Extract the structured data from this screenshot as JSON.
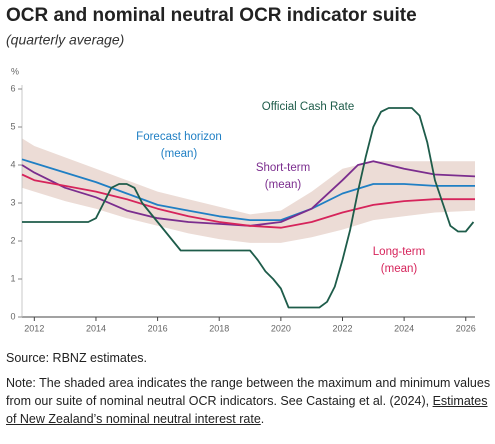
{
  "chart_data": {
    "type": "line",
    "title": "OCR and nominal neutral OCR indicator suite",
    "subtitle": "(quarterly average)",
    "y_unit": "%",
    "xlim": [
      2011.6,
      2026.3
    ],
    "xticks": [
      2012,
      2014,
      2016,
      2018,
      2020,
      2022,
      2024,
      2026
    ],
    "ylim": [
      0,
      6
    ],
    "yticks": [
      0,
      1,
      2,
      3,
      4,
      5,
      6
    ],
    "grid": false,
    "range": {
      "color": "#ecdcd6",
      "x": [
        2011.6,
        2012,
        2013,
        2014,
        2015,
        2016,
        2017,
        2018,
        2019,
        2020,
        2021,
        2022,
        2023,
        2024,
        2025,
        2026.3
      ],
      "upper": [
        4.7,
        4.5,
        4.2,
        3.9,
        3.6,
        3.3,
        3.1,
        2.9,
        2.7,
        2.8,
        3.3,
        3.9,
        4.1,
        4.1,
        4.1,
        4.1
      ],
      "lower": [
        3.4,
        3.3,
        3.05,
        2.85,
        2.6,
        2.4,
        2.2,
        2.05,
        1.95,
        1.95,
        2.1,
        2.3,
        2.55,
        2.65,
        2.75,
        2.8
      ]
    },
    "series": [
      {
        "label": [
          "Forecast horizon",
          "(mean)"
        ],
        "color": "#1f7fc4",
        "x": [
          2011.6,
          2012,
          2013,
          2014,
          2015,
          2016,
          2017,
          2018,
          2019,
          2020,
          2021,
          2022,
          2023,
          2024,
          2025,
          2026.3
        ],
        "values": [
          4.15,
          4.05,
          3.8,
          3.55,
          3.25,
          2.95,
          2.8,
          2.65,
          2.55,
          2.55,
          2.85,
          3.25,
          3.5,
          3.5,
          3.45,
          3.45
        ]
      },
      {
        "label": [
          "Short-term",
          "(mean)"
        ],
        "color": "#7b2d8e",
        "x": [
          2011.6,
          2012,
          2013,
          2014,
          2015,
          2016,
          2017,
          2018,
          2019,
          2020,
          2021,
          2022,
          2022.5,
          2023,
          2024,
          2025,
          2026.3
        ],
        "values": [
          4.0,
          3.8,
          3.4,
          3.15,
          2.8,
          2.6,
          2.5,
          2.45,
          2.4,
          2.5,
          2.85,
          3.6,
          4.0,
          4.1,
          3.9,
          3.75,
          3.7
        ]
      },
      {
        "label": [
          "Long-term",
          "(mean)"
        ],
        "color": "#d6245b",
        "x": [
          2011.6,
          2012,
          2013,
          2014,
          2015,
          2016,
          2017,
          2018,
          2019,
          2020,
          2021,
          2022,
          2023,
          2024,
          2025,
          2026.3
        ],
        "values": [
          3.75,
          3.6,
          3.45,
          3.3,
          3.1,
          2.85,
          2.65,
          2.5,
          2.4,
          2.35,
          2.5,
          2.75,
          2.95,
          3.05,
          3.1,
          3.1
        ]
      },
      {
        "label": [
          "Official Cash Rate"
        ],
        "color": "#1e5c4a",
        "x": [
          2011.6,
          2013.75,
          2014.0,
          2014.25,
          2014.5,
          2014.75,
          2015.0,
          2015.25,
          2015.5,
          2016.0,
          2016.5,
          2016.75,
          2019.0,
          2019.25,
          2019.5,
          2019.75,
          2020.0,
          2020.25,
          2021.25,
          2021.5,
          2021.75,
          2022.0,
          2022.25,
          2022.5,
          2022.75,
          2023.0,
          2023.25,
          2023.5,
          2024.25,
          2024.5,
          2024.75,
          2025.0,
          2025.25,
          2025.5,
          2025.75,
          2026.0,
          2026.25
        ],
        "values": [
          2.5,
          2.5,
          2.6,
          3.0,
          3.4,
          3.5,
          3.5,
          3.4,
          3.0,
          2.5,
          2.0,
          1.75,
          1.75,
          1.5,
          1.2,
          1.0,
          0.75,
          0.25,
          0.25,
          0.4,
          0.8,
          1.5,
          2.3,
          3.3,
          4.2,
          5.0,
          5.4,
          5.5,
          5.5,
          5.3,
          4.6,
          3.6,
          3.0,
          2.4,
          2.25,
          2.25,
          2.5
        ]
      }
    ]
  },
  "footer": {
    "source": "Source: RBNZ estimates.",
    "note": "Note: The shaded area indicates the range between the maximum and minimum values from our suite of nominal neutral OCR indicators. See Castaing et al. (2024), ",
    "note_link": "Estimates of New Zealand’s nominal neutral interest rate",
    "note_end": "."
  }
}
